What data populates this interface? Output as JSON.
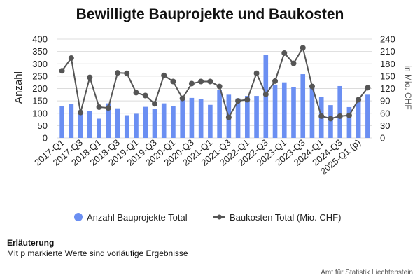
{
  "chart_data": {
    "type": "bar+line",
    "title": "Bewilligte Bauprojekte und Baukosten",
    "ylabel": "Anzahl",
    "y2label": "in Mio. CHF",
    "ylim": [
      0,
      400
    ],
    "yticks": [
      0,
      50,
      100,
      150,
      200,
      250,
      300,
      350,
      400
    ],
    "y2lim": [
      0,
      240
    ],
    "y2ticks": [
      0,
      30,
      60,
      90,
      120,
      150,
      180,
      210,
      240
    ],
    "grid": true,
    "legend_position": "bottom",
    "categories": [
      "2017-Q1",
      "2017-Q2",
      "2017-Q3",
      "2017-Q4",
      "2018-Q1",
      "2018-Q2",
      "2018-Q3",
      "2018-Q4",
      "2019-Q1",
      "2019-Q2",
      "2019-Q3",
      "2019-Q4",
      "2020-Q1",
      "2020-Q2",
      "2020-Q3",
      "2020-Q4",
      "2021-Q1",
      "2021-Q2",
      "2021-Q3",
      "2021-Q4",
      "2022-Q1",
      "2022-Q2",
      "2022-Q3",
      "2022-Q4",
      "2023-Q1",
      "2023-Q2",
      "2023-Q3",
      "2023-Q4",
      "2024-Q1",
      "2024-Q2",
      "2024-Q3",
      "2024-Q4",
      "2025-Q1 (p)",
      "2025-Q2 (p)"
    ],
    "tick_labels": [
      "2017-Q1",
      "2017-Q3",
      "2018-Q1",
      "2018-Q3",
      "2019-Q1",
      "2019-Q3",
      "2020-Q1",
      "2020-Q3",
      "2021-Q1",
      "2021-Q3",
      "2022-Q1",
      "2022-Q3",
      "2023-Q1",
      "2023-Q3",
      "2024-Q1",
      "2024-Q3",
      "2025-Q1 (p)"
    ],
    "series": [
      {
        "name": "Anzahl Bauprojekte Total",
        "type": "bar",
        "axis": "left",
        "color": "#6b8ff2",
        "values": [
          130,
          138,
          112,
          110,
          78,
          140,
          120,
          92,
          98,
          126,
          118,
          140,
          128,
          155,
          162,
          156,
          134,
          195,
          175,
          160,
          170,
          170,
          335,
          216,
          225,
          205,
          258,
          210,
          167,
          133,
          210,
          125,
          160,
          175
        ]
      },
      {
        "name": "Baukosten Total (Mio. CHF)",
        "type": "line",
        "axis": "right",
        "color": "#555555",
        "values": [
          163,
          194,
          62,
          147,
          75,
          73,
          158,
          157,
          110,
          103,
          83,
          152,
          137,
          96,
          132,
          137,
          137,
          125,
          50,
          90,
          93,
          157,
          106,
          138,
          206,
          181,
          219,
          125,
          53,
          47,
          53,
          55,
          93,
          122
        ]
      }
    ]
  },
  "note": {
    "title": "Erläuterung",
    "text": "Mit p markierte Werte sind vorläufige Ergebnisse"
  },
  "source": "Amt für Statistik Liechtenstein"
}
